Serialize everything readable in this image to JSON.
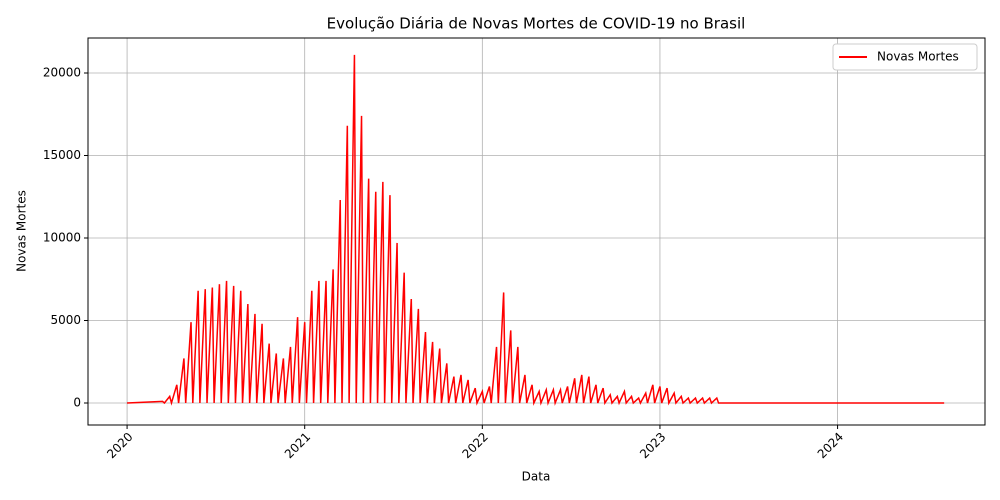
{
  "chart_data": {
    "type": "line",
    "title": "Evolução Diária de Novas Mortes de COVID-19 no Brasil",
    "x_label": "Data",
    "y_label": "Novas Mortes",
    "x": [
      2020.0,
      2020.2,
      2020.21,
      2020.24,
      2020.25,
      2020.28,
      2020.29,
      2020.32,
      2020.33,
      2020.36,
      2020.37,
      2020.4,
      2020.41,
      2020.44,
      2020.45,
      2020.48,
      2020.49,
      2020.52,
      2020.53,
      2020.56,
      2020.57,
      2020.6,
      2020.61,
      2020.64,
      2020.65,
      2020.68,
      2020.69,
      2020.72,
      2020.73,
      2020.76,
      2020.77,
      2020.8,
      2020.81,
      2020.84,
      2020.85,
      2020.88,
      2020.89,
      2020.92,
      2020.93,
      2020.96,
      2020.97,
      2021.0,
      2021.01,
      2021.04,
      2021.05,
      2021.08,
      2021.09,
      2021.12,
      2021.13,
      2021.16,
      2021.17,
      2021.2,
      2021.21,
      2021.24,
      2021.25,
      2021.28,
      2021.29,
      2021.32,
      2021.33,
      2021.36,
      2021.37,
      2021.4,
      2021.41,
      2021.44,
      2021.45,
      2021.48,
      2021.49,
      2021.52,
      2021.53,
      2021.56,
      2021.57,
      2021.6,
      2021.61,
      2021.64,
      2021.65,
      2021.68,
      2021.69,
      2021.72,
      2021.73,
      2021.76,
      2021.77,
      2021.8,
      2021.81,
      2021.84,
      2021.85,
      2021.88,
      2021.89,
      2021.92,
      2021.93,
      2021.96,
      2021.97,
      2022.0,
      2022.01,
      2022.04,
      2022.05,
      2022.08,
      2022.09,
      2022.12,
      2022.13,
      2022.16,
      2022.17,
      2022.2,
      2022.21,
      2022.24,
      2022.25,
      2022.28,
      2022.29,
      2022.32,
      2022.33,
      2022.36,
      2022.37,
      2022.4,
      2022.41,
      2022.44,
      2022.45,
      2022.48,
      2022.49,
      2022.52,
      2022.53,
      2022.56,
      2022.57,
      2022.6,
      2022.61,
      2022.64,
      2022.65,
      2022.68,
      2022.69,
      2022.72,
      2022.73,
      2022.76,
      2022.77,
      2022.8,
      2022.81,
      2022.84,
      2022.85,
      2022.88,
      2022.89,
      2022.92,
      2022.93,
      2022.96,
      2022.97,
      2023.0,
      2023.01,
      2023.04,
      2023.05,
      2023.08,
      2023.09,
      2023.12,
      2023.13,
      2023.16,
      2023.17,
      2023.2,
      2023.21,
      2023.24,
      2023.25,
      2023.28,
      2023.29,
      2023.32,
      2023.33,
      2024.6
    ],
    "series": [
      {
        "name": "Novas Mortes",
        "color": "#ff0000",
        "values": [
          0,
          100,
          0,
          400,
          0,
          1100,
          0,
          2700,
          0,
          4900,
          0,
          6800,
          0,
          6900,
          0,
          7000,
          0,
          7200,
          0,
          7400,
          0,
          7100,
          0,
          6800,
          0,
          6000,
          0,
          5400,
          0,
          4800,
          0,
          3600,
          0,
          3000,
          0,
          2700,
          0,
          3400,
          0,
          5200,
          0,
          4900,
          0,
          6800,
          0,
          7400,
          0,
          7400,
          0,
          8100,
          0,
          12300,
          0,
          16800,
          0,
          21100,
          0,
          17400,
          0,
          13600,
          0,
          12800,
          0,
          13400,
          0,
          12600,
          0,
          9700,
          0,
          7900,
          0,
          6300,
          0,
          5700,
          0,
          4300,
          0,
          3700,
          0,
          3300,
          0,
          2400,
          0,
          1600,
          0,
          1700,
          0,
          1400,
          0,
          900,
          0,
          700,
          0,
          1000,
          0,
          3400,
          0,
          6700,
          0,
          4400,
          0,
          3400,
          0,
          1700,
          0,
          1100,
          0,
          700,
          0,
          800,
          0,
          800,
          0,
          800,
          0,
          1000,
          0,
          1500,
          0,
          1700,
          0,
          1600,
          0,
          1100,
          0,
          900,
          0,
          500,
          0,
          400,
          0,
          700,
          0,
          400,
          0,
          300,
          0,
          600,
          0,
          1100,
          0,
          1000,
          0,
          900,
          0,
          600,
          0,
          400,
          0,
          300,
          0,
          300,
          0,
          300,
          0,
          300,
          0,
          300,
          0,
          0
        ]
      }
    ],
    "xlim": [
      2019.78,
      2024.83
    ],
    "xticks": [
      2020,
      2021,
      2022,
      2023,
      2024
    ],
    "ylim": [
      -1333,
      22121
    ],
    "yticks": [
      0,
      5000,
      10000,
      15000,
      20000
    ],
    "grid": true,
    "legend": "upper right"
  }
}
